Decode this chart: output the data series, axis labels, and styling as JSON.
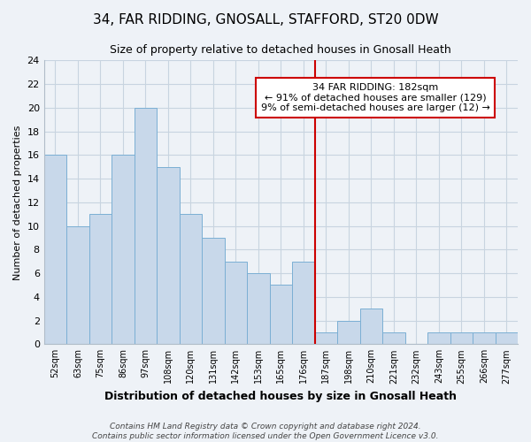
{
  "title": "34, FAR RIDDING, GNOSALL, STAFFORD, ST20 0DW",
  "subtitle": "Size of property relative to detached houses in Gnosall Heath",
  "xlabel": "Distribution of detached houses by size in Gnosall Heath",
  "ylabel": "Number of detached properties",
  "bin_labels": [
    "52sqm",
    "63sqm",
    "75sqm",
    "86sqm",
    "97sqm",
    "108sqm",
    "120sqm",
    "131sqm",
    "142sqm",
    "153sqm",
    "165sqm",
    "176sqm",
    "187sqm",
    "198sqm",
    "210sqm",
    "221sqm",
    "232sqm",
    "243sqm",
    "255sqm",
    "266sqm",
    "277sqm"
  ],
  "bar_values": [
    16,
    10,
    11,
    16,
    20,
    15,
    11,
    9,
    7,
    6,
    5,
    7,
    1,
    2,
    3,
    1,
    0,
    1,
    1,
    1,
    1
  ],
  "bar_color": "#c8d8ea",
  "bar_edge_color": "#7bafd4",
  "vline_color": "#cc0000",
  "annotation_text": "34 FAR RIDDING: 182sqm\n← 91% of detached houses are smaller (129)\n9% of semi-detached houses are larger (12) →",
  "annotation_box_color": "white",
  "annotation_box_edge_color": "#cc0000",
  "ylim": [
    0,
    24
  ],
  "yticks": [
    0,
    2,
    4,
    6,
    8,
    10,
    12,
    14,
    16,
    18,
    20,
    22,
    24
  ],
  "footer_text": "Contains HM Land Registry data © Crown copyright and database right 2024.\nContains public sector information licensed under the Open Government Licence v3.0.",
  "grid_color": "#c8d4e0",
  "background_color": "#eef2f7",
  "title_fontsize": 11,
  "subtitle_fontsize": 9
}
